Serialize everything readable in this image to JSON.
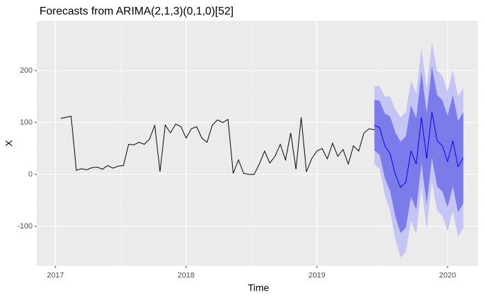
{
  "chart_data": {
    "type": "forecast",
    "title": "Forecasts from ARIMA(2,1,3)(0,1,0)[52]",
    "x_label": "Time",
    "y_label": "X",
    "xlim": [
      2016.857,
      2020.233
    ],
    "ylim": [
      -176,
      296
    ],
    "xticks": [
      2017,
      2018,
      2019,
      2020
    ],
    "yticks": [
      -100,
      0,
      100,
      200
    ],
    "grid": true,
    "line_color": "#000000",
    "x": [
      2017.04,
      2017.08,
      2017.12,
      2017.16,
      2017.2,
      2017.24,
      2017.28,
      2017.32,
      2017.36,
      2017.4,
      2017.44,
      2017.48,
      2017.52,
      2017.56,
      2017.6,
      2017.64,
      2017.68,
      2017.72,
      2017.76,
      2017.8,
      2017.84,
      2017.88,
      2017.92,
      2017.96,
      2018.0,
      2018.04,
      2018.08,
      2018.12,
      2018.16,
      2018.2,
      2018.24,
      2018.28,
      2018.32,
      2018.36,
      2018.4,
      2018.44,
      2018.48,
      2018.52,
      2018.56,
      2018.6,
      2018.64,
      2018.68,
      2018.72,
      2018.76,
      2018.8,
      2018.84,
      2018.88,
      2018.92,
      2018.96,
      2019.0,
      2019.04,
      2019.08,
      2019.12,
      2019.16,
      2019.2,
      2019.24,
      2019.28,
      2019.32,
      2019.36,
      2019.4,
      2019.44
    ],
    "values": [
      108,
      110,
      112,
      8,
      11,
      9,
      13,
      14,
      10,
      17,
      12,
      16,
      17,
      58,
      57,
      62,
      58,
      68,
      95,
      5,
      95,
      80,
      97,
      92,
      70,
      88,
      92,
      70,
      62,
      95,
      105,
      100,
      106,
      2,
      28,
      2,
      0,
      0,
      20,
      45,
      22,
      35,
      58,
      28,
      80,
      10,
      110,
      5,
      30,
      45,
      50,
      30,
      60,
      35,
      48,
      20,
      55,
      45,
      80,
      88,
      86
    ],
    "forecast": {
      "x": [
        2019.44,
        2019.48,
        2019.52,
        2019.56,
        2019.6,
        2019.64,
        2019.68,
        2019.72,
        2019.76,
        2019.8,
        2019.84,
        2019.88,
        2019.92,
        2019.96,
        2020.0,
        2020.04,
        2020.08,
        2020.12
      ],
      "mean": [
        95,
        90,
        55,
        40,
        0,
        -25,
        -15,
        45,
        20,
        110,
        30,
        120,
        65,
        55,
        25,
        65,
        15,
        32
      ],
      "lo80": [
        46,
        38,
        -7,
        -32,
        -81,
        -113,
        -103,
        -43,
        -68,
        22,
        -58,
        32,
        -23,
        -33,
        -63,
        -23,
        -73,
        -56
      ],
      "hi80": [
        144,
        142,
        117,
        112,
        81,
        63,
        73,
        133,
        108,
        198,
        118,
        208,
        153,
        143,
        113,
        153,
        103,
        120
      ],
      "lo95": [
        20,
        10,
        -40,
        -70,
        -125,
        -160,
        -150,
        -90,
        -115,
        -25,
        -105,
        -15,
        -70,
        -80,
        -110,
        -70,
        -120,
        -103
      ],
      "hi95": [
        170,
        170,
        150,
        150,
        125,
        110,
        120,
        180,
        155,
        245,
        165,
        255,
        200,
        190,
        160,
        200,
        150,
        167
      ],
      "mean_color": "#0000ff",
      "band80_color": "#7b7be9",
      "band95_color": "#c5c5f5"
    }
  }
}
